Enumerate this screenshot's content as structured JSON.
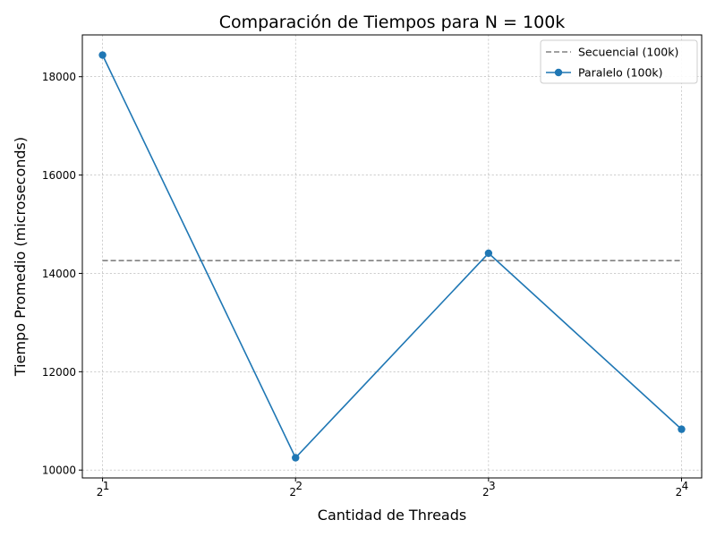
{
  "chart_data": {
    "type": "line",
    "title": "Comparación de Tiempos para N = 100k",
    "xlabel": "Cantidad de Threads",
    "ylabel": "Tiempo Promedio (microseconds)",
    "x_scale": "log2",
    "x": [
      2,
      4,
      8,
      16
    ],
    "x_tick_labels": [
      {
        "base": "2",
        "exp": "1"
      },
      {
        "base": "2",
        "exp": "2"
      },
      {
        "base": "2",
        "exp": "3"
      },
      {
        "base": "2",
        "exp": "4"
      }
    ],
    "xlim": [
      1.86,
      17.2
    ],
    "ylim": [
      9840,
      18850
    ],
    "y_ticks": [
      10000,
      12000,
      14000,
      16000,
      18000
    ],
    "grid": true,
    "legend_position": "top-right",
    "series": [
      {
        "name": "Secuencial (100k)",
        "style": "dashed",
        "color": "#808080",
        "markers": false,
        "values": [
          14260,
          14260,
          14260,
          14260
        ]
      },
      {
        "name": "Paralelo (100k)",
        "style": "solid",
        "color": "#1f77b4",
        "markers": true,
        "values": [
          18440,
          10250,
          14410,
          10830
        ]
      }
    ]
  }
}
